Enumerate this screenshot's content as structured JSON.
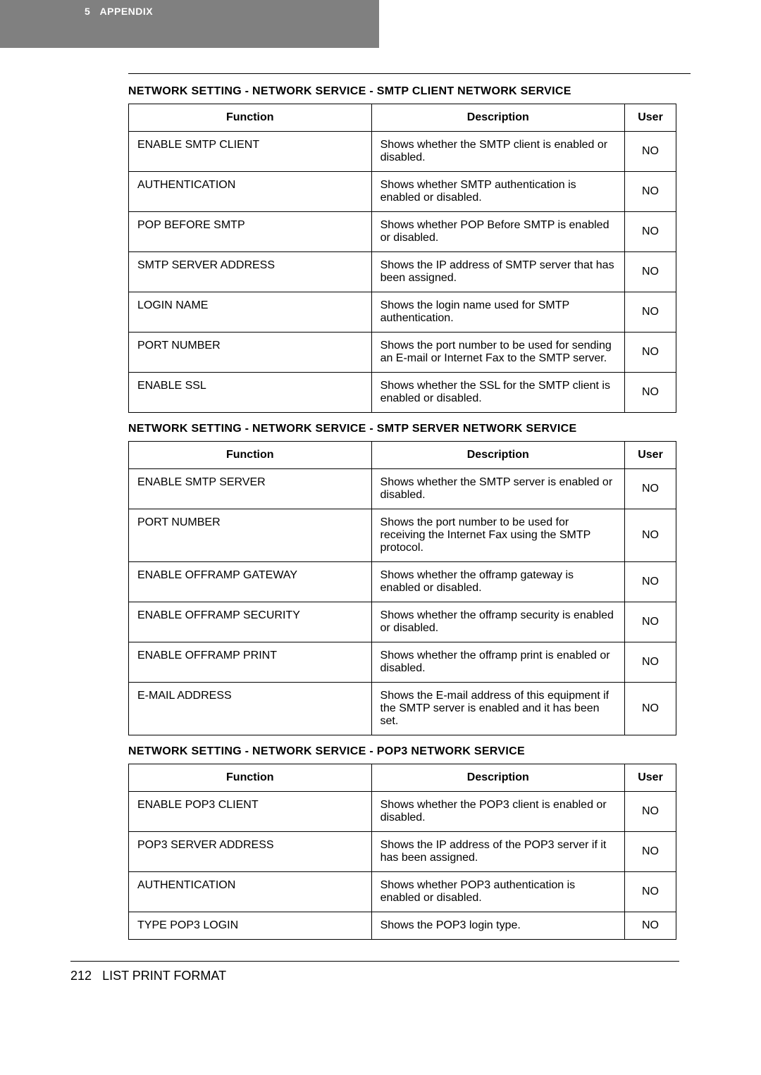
{
  "header": {
    "chapter": "5",
    "title": "APPENDIX"
  },
  "sections": [
    {
      "title": "NETWORK SETTING - NETWORK SERVICE - SMTP CLIENT NETWORK SERVICE",
      "cols": [
        "Function",
        "Description",
        "User"
      ],
      "rows": [
        [
          "ENABLE SMTP CLIENT",
          "Shows whether the SMTP client is enabled or disabled.",
          "NO"
        ],
        [
          "AUTHENTICATION",
          "Shows whether SMTP authentication is enabled or disabled.",
          "NO"
        ],
        [
          "POP BEFORE SMTP",
          "Shows whether POP Before SMTP is enabled or disabled.",
          "NO"
        ],
        [
          "SMTP SERVER ADDRESS",
          "Shows the IP address of SMTP server that has been assigned.",
          "NO"
        ],
        [
          "LOGIN NAME",
          "Shows the login name used for SMTP authentication.",
          "NO"
        ],
        [
          "PORT NUMBER",
          "Shows the port number to be used for sending an E-mail or Internet Fax to the SMTP server.",
          "NO"
        ],
        [
          "ENABLE SSL",
          "Shows whether the SSL for the SMTP client is enabled or disabled.",
          "NO"
        ]
      ]
    },
    {
      "title": "NETWORK SETTING - NETWORK SERVICE - SMTP SERVER NETWORK SERVICE",
      "cols": [
        "Function",
        "Description",
        "User"
      ],
      "rows": [
        [
          "ENABLE SMTP SERVER",
          "Shows whether the SMTP server is enabled or disabled.",
          "NO"
        ],
        [
          "PORT NUMBER",
          "Shows the port number to be used for receiving the Internet Fax using the SMTP protocol.",
          "NO"
        ],
        [
          "ENABLE OFFRAMP GATEWAY",
          "Shows whether the offramp gateway is enabled or disabled.",
          "NO"
        ],
        [
          "ENABLE OFFRAMP SECURITY",
          "Shows whether the offramp security is enabled or disabled.",
          "NO"
        ],
        [
          "ENABLE OFFRAMP PRINT",
          "Shows whether the offramp print is enabled or disabled.",
          "NO"
        ],
        [
          "E-MAIL ADDRESS",
          "Shows the E-mail address of this equipment if the SMTP server is enabled and it has been set.",
          "NO"
        ]
      ]
    },
    {
      "title": "NETWORK SETTING - NETWORK SERVICE - POP3 NETWORK SERVICE",
      "cols": [
        "Function",
        "Description",
        "User"
      ],
      "rows": [
        [
          "ENABLE POP3 CLIENT",
          "Shows whether the POP3 client is enabled or disabled.",
          "NO"
        ],
        [
          "POP3 SERVER ADDRESS",
          "Shows the IP address of the POP3 server if it has been assigned.",
          "NO"
        ],
        [
          "AUTHENTICATION",
          "Shows whether POP3 authentication is enabled or disabled.",
          "NO"
        ],
        [
          "TYPE POP3 LOGIN",
          "Shows the POP3 login type.",
          "NO"
        ]
      ]
    }
  ],
  "footer": {
    "page": "212",
    "label": "LIST PRINT FORMAT"
  }
}
